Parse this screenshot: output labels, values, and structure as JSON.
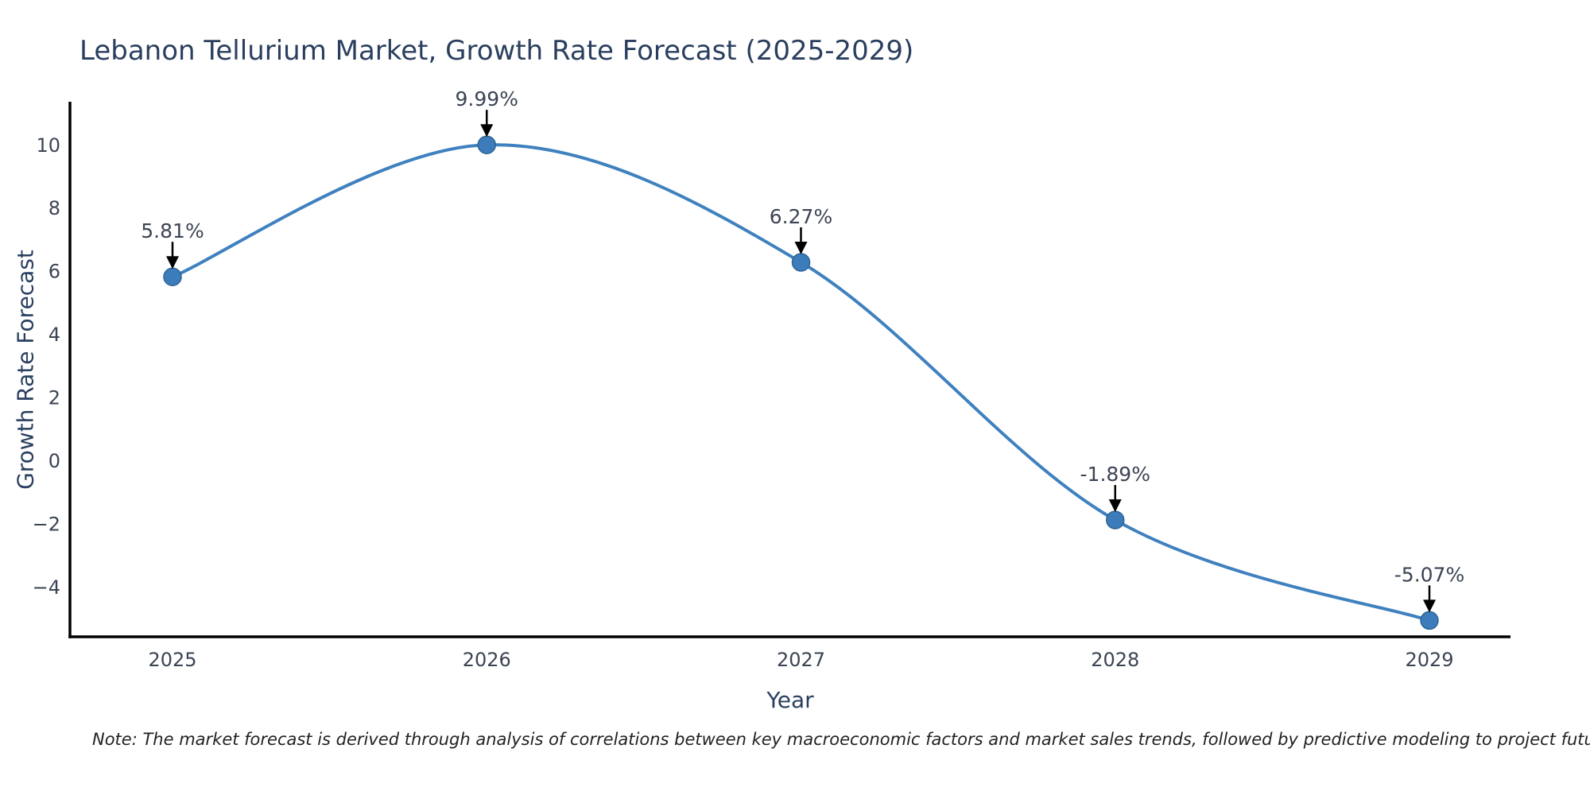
{
  "page": {
    "background": "#ffffff"
  },
  "chart_data": {
    "type": "line",
    "title": "Lebanon Tellurium Market, Growth Rate Forecast (2025-2029)",
    "xlabel": "Year",
    "ylabel": "Growth Rate Forecast",
    "x": [
      2025,
      2026,
      2027,
      2028,
      2029
    ],
    "series": [
      {
        "name": "Growth Rate Forecast",
        "values": [
          5.81,
          9.99,
          6.27,
          -1.89,
          -5.07
        ]
      }
    ],
    "point_labels": [
      "5.81%",
      "9.99%",
      "6.27%",
      "-1.89%",
      "-5.07%"
    ],
    "xtick_labels": [
      "2025",
      "2026",
      "2027",
      "2028",
      "2029"
    ],
    "yticks": [
      10,
      8,
      6,
      4,
      2,
      0,
      -2,
      -4
    ],
    "ytick_labels": [
      "10",
      "8",
      "6",
      "4",
      "2",
      "0",
      "−2",
      "−4"
    ],
    "ylim": [
      -5.6,
      11.3
    ],
    "grid": false,
    "legend": "none",
    "line_shape": "spline",
    "colors": {
      "line": "#3f81bf",
      "marker_fill": "#3c7cba",
      "marker_edge": "#2e6496",
      "axis_line": "#000000",
      "title": "#2a3f5f",
      "axis_title": "#2a3f5f",
      "tick_label": "#3b4454",
      "annotation_text": "#3b4454",
      "annotation_arrow": "#000000",
      "note_text": "#222222"
    },
    "note": "Note: The market forecast is derived through analysis of correlations between key macroeconomic factors and market sales trends, followed by predictive modeling to project future sales"
  }
}
